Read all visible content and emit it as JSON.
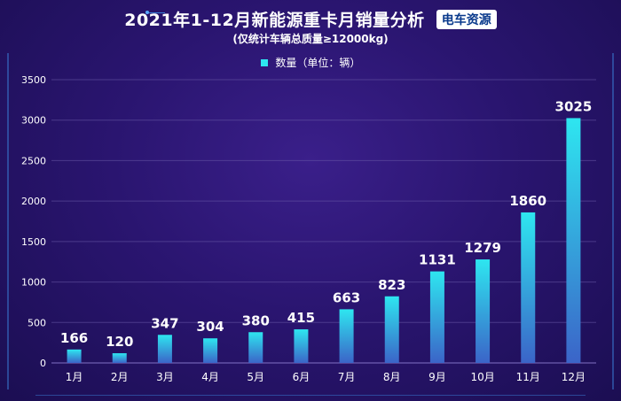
{
  "title": "2021年1-12月新能源重卡月销量分析",
  "brand": "电车资源",
  "subtitle": "(仅统计车辆总质量≥12000kg)",
  "colors": {
    "bar_top": "#2ee6f0",
    "bar_bottom": "#3b64c8",
    "axis_text": "#ffffff",
    "grid": "#6a5aa8"
  },
  "chart_data": {
    "type": "bar",
    "title": "2021年1-12月新能源重卡月销量分析",
    "subtitle": "(仅统计车辆总质量≥12000kg)",
    "legend": {
      "position": "top",
      "entries": [
        "数量（单位：辆）"
      ]
    },
    "categories": [
      "1月",
      "2月",
      "3月",
      "4月",
      "5月",
      "6月",
      "7月",
      "8月",
      "9月",
      "10月",
      "11月",
      "12月"
    ],
    "series": [
      {
        "name": "数量（单位：辆）",
        "values": [
          166,
          120,
          347,
          304,
          380,
          415,
          663,
          823,
          1131,
          1279,
          1860,
          3025
        ]
      }
    ],
    "yticks": [
      0,
      500,
      1000,
      1500,
      2000,
      2500,
      3000,
      3500
    ],
    "ylim": [
      0,
      3500
    ],
    "grid": true,
    "xlabel": "",
    "ylabel": ""
  }
}
